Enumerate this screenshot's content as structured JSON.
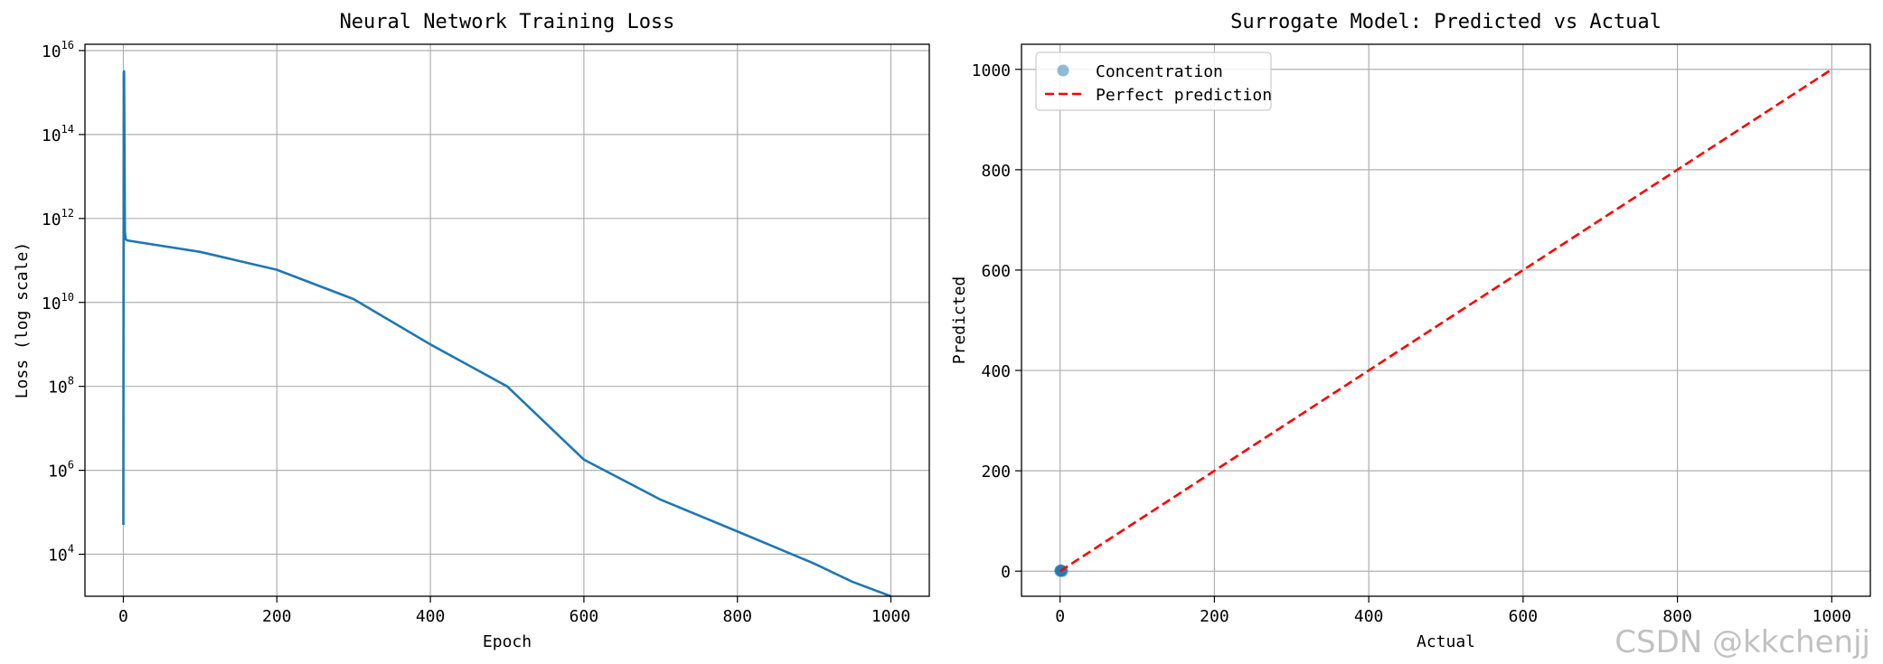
{
  "chart_data": [
    {
      "type": "line",
      "title": "Neural Network Training Loss",
      "xlabel": "Epoch",
      "ylabel": "Loss (log scale)",
      "yscale": "log",
      "xlim": [
        -50,
        1050
      ],
      "ylim_exp": [
        3.0,
        16.15
      ],
      "xticks": [
        0,
        200,
        400,
        600,
        800,
        1000
      ],
      "ytick_exps": [
        4,
        6,
        8,
        10,
        12,
        14,
        16
      ],
      "grid": true,
      "series": [
        {
          "color": "#1f77b4",
          "x": [
            0,
            0.5,
            1,
            2,
            3,
            5,
            100,
            200,
            300,
            400,
            500,
            600,
            700,
            800,
            900,
            950,
            1000
          ],
          "y": [
            50000,
            3000000000000000.0,
            3200000000000000.0,
            500000000000.0,
            320000000000.0,
            300000000000.0,
            160000000000.0,
            60000000000.0,
            12000000000.0,
            1000000000.0,
            100000000.0,
            1800000.0,
            200000.0,
            35000.0,
            6000.0,
            2200.0,
            1000.0
          ]
        }
      ]
    },
    {
      "type": "scatter",
      "title": "Surrogate Model: Predicted vs Actual",
      "xlabel": "Actual",
      "ylabel": "Predicted",
      "xlim": [
        -50,
        1050
      ],
      "ylim": [
        -50,
        1050
      ],
      "xticks": [
        0,
        200,
        400,
        600,
        800,
        1000
      ],
      "yticks": [
        0,
        200,
        400,
        600,
        800,
        1000
      ],
      "grid": true,
      "legend_position": "top-left",
      "series": [
        {
          "name": "Concentration",
          "kind": "scatter",
          "color": "#1f77b4",
          "x": [
            0,
            1,
            2,
            0.5,
            1.5,
            3
          ],
          "y": [
            0,
            1,
            0.5,
            2,
            1,
            0
          ]
        },
        {
          "name": "Perfect prediction",
          "kind": "dashed-line",
          "color": "#ff0000",
          "x": [
            0,
            1000
          ],
          "y": [
            0,
            1000
          ]
        }
      ]
    }
  ],
  "watermark": "CSDN @kkchenjj"
}
